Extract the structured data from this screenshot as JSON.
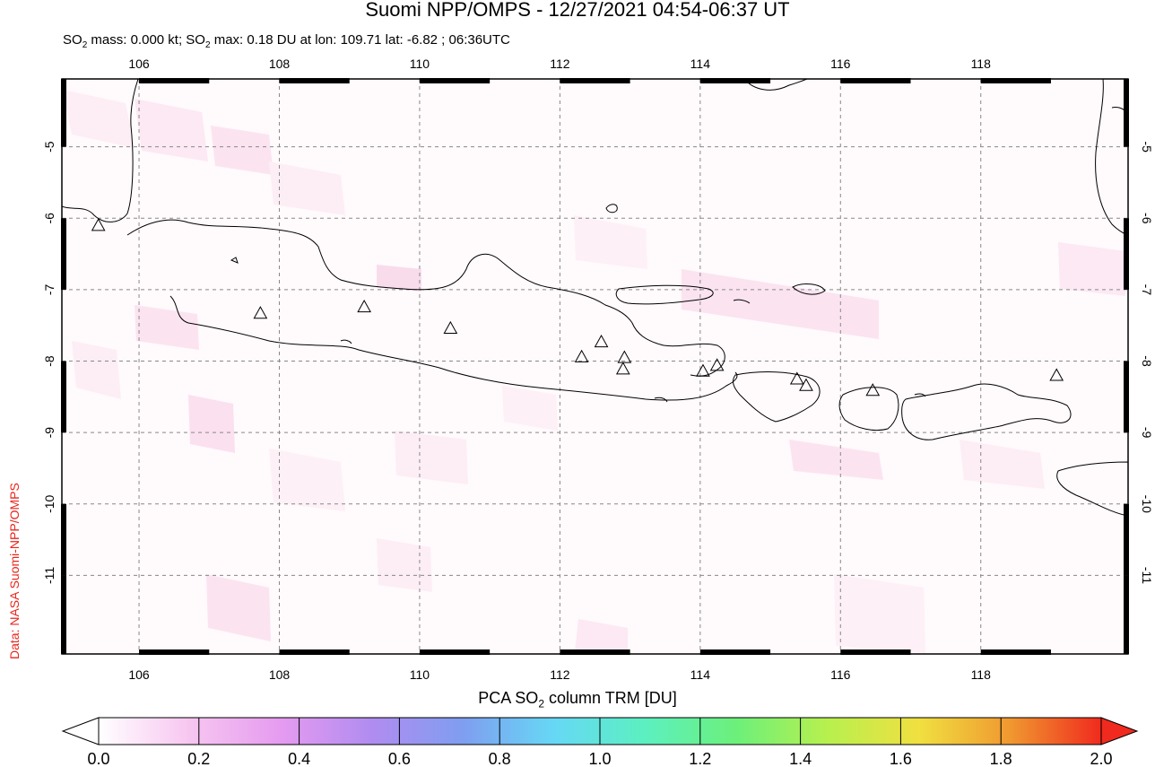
{
  "title": "Suomi NPP/OMPS - 12/27/2021 04:54-06:37 UT",
  "subtitle": {
    "prefix": "SO",
    "sub": "2",
    "mid": " mass: 0.000 kt; SO",
    "sub2": "2",
    "rest": " max: 0.18 DU at lon: 109.71 lat: -6.82 ; 06:36UTC"
  },
  "credit": "Data: NASA Suomi-NPP/OMPS",
  "map": {
    "lon_range": [
      104.9,
      120.1
    ],
    "lat_range": [
      -12.1,
      -4.05
    ],
    "lon_ticks": [
      "106",
      "108",
      "110",
      "112",
      "114",
      "116",
      "118"
    ],
    "lat_ticks": [
      "-5",
      "-6",
      "-7",
      "-8",
      "-9",
      "-10",
      "-11"
    ],
    "lat_tick_values": [
      -5,
      -6,
      -7,
      -8,
      -9,
      -10,
      -11
    ],
    "lon_tick_values": [
      106,
      108,
      110,
      112,
      114,
      116,
      118
    ],
    "volcanoes": [
      {
        "lon": 105.42,
        "lat": -6.1
      },
      {
        "lon": 107.73,
        "lat": -7.33
      },
      {
        "lon": 109.21,
        "lat": -7.24
      },
      {
        "lon": 110.44,
        "lat": -7.54
      },
      {
        "lon": 112.31,
        "lat": -7.94
      },
      {
        "lon": 112.59,
        "lat": -7.73
      },
      {
        "lon": 112.92,
        "lat": -7.95
      },
      {
        "lon": 112.9,
        "lat": -8.11
      },
      {
        "lon": 114.04,
        "lat": -8.14
      },
      {
        "lon": 114.24,
        "lat": -8.06
      },
      {
        "lon": 115.38,
        "lat": -8.25
      },
      {
        "lon": 115.51,
        "lat": -8.34
      },
      {
        "lon": 116.46,
        "lat": -8.41
      },
      {
        "lon": 119.08,
        "lat": -8.2
      }
    ],
    "pixel_tint": "#fce8f2"
  },
  "colorbar": {
    "label_prefix": "PCA SO",
    "label_sub": "2",
    "label_rest": " column TRM [DU]",
    "ticks": [
      "0.0",
      "0.2",
      "0.4",
      "0.6",
      "0.8",
      "1.0",
      "1.2",
      "1.4",
      "1.6",
      "1.8",
      "2.0"
    ],
    "tick_values": [
      0.0,
      0.2,
      0.4,
      0.6,
      0.8,
      1.0,
      1.2,
      1.4,
      1.6,
      1.8,
      2.0
    ],
    "range": [
      0.0,
      2.0
    ],
    "colors": [
      "#ffffff",
      "#f7c6f0",
      "#e59bf0",
      "#b08cf0",
      "#7f9ef0",
      "#66d8f5",
      "#5cf0c0",
      "#6cf07a",
      "#b8f04e",
      "#f0e040",
      "#f09830",
      "#f02a1e"
    ]
  }
}
